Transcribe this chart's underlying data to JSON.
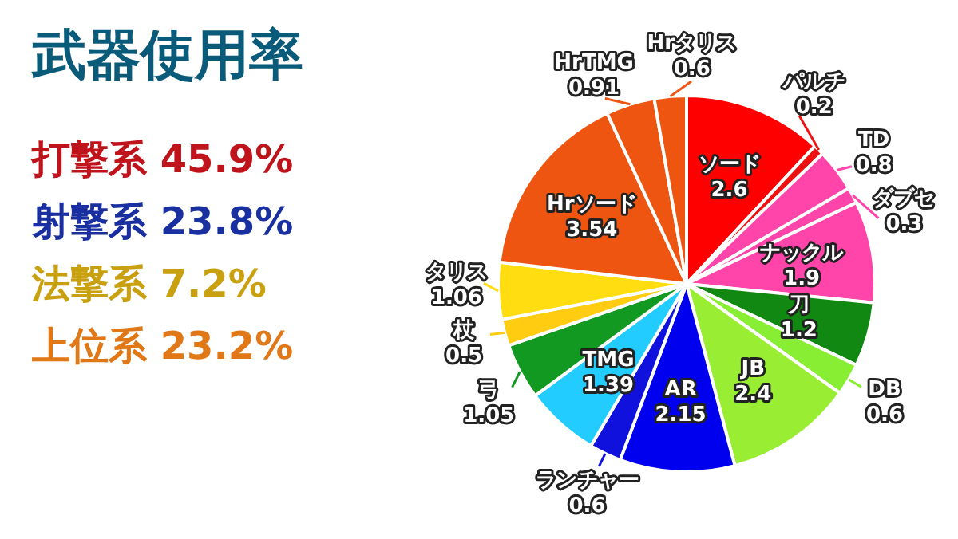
{
  "chart_data": {
    "type": "pie",
    "title": "武器使用率",
    "categories": [
      "ソード",
      "パルチ",
      "TD",
      "ダブセ",
      "ナックル",
      "刀",
      "DB",
      "JB",
      "AR",
      "ランチャー",
      "TMG",
      "弓",
      "杖",
      "タリス",
      "Hrソード",
      "HrTMG",
      "Hrタリス"
    ],
    "values": [
      2.6,
      0.2,
      0.8,
      0.3,
      1.9,
      1.2,
      0.6,
      2.4,
      2.15,
      0.6,
      1.39,
      1.05,
      0.5,
      1.06,
      3.54,
      0.91,
      0.6
    ],
    "colors": [
      "#ff0000",
      "#ee1111",
      "#ff44aa",
      "#ff44aa",
      "#ff44aa",
      "#118811",
      "#88ee33",
      "#99ee33",
      "#0000ee",
      "#1111dd",
      "#22ccff",
      "#119922",
      "#ffcc11",
      "#ffdd11",
      "#ee5511",
      "#ee5511",
      "#ee5511"
    ],
    "data_labels": true,
    "annotations": [
      "打撃系 45.9%",
      "射撃系 23.8%",
      "法撃系 7.2%",
      "上位系 23.2%"
    ]
  }
}
